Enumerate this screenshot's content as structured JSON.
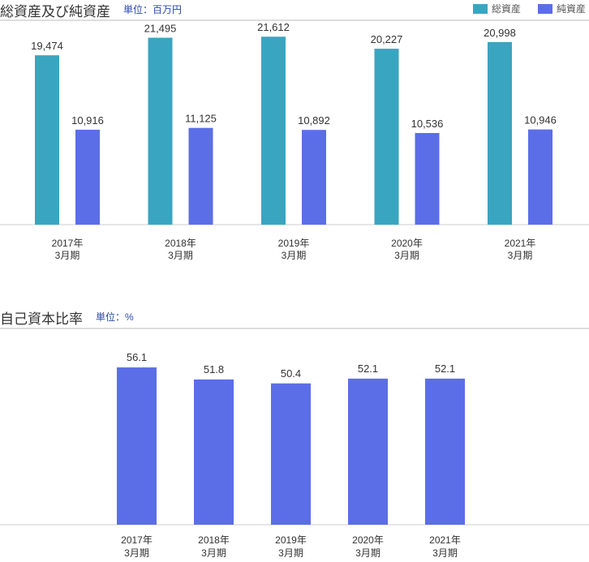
{
  "chart_data": [
    {
      "type": "bar",
      "title": "総資産及び純資産",
      "unit": "単位：百万円",
      "categories": [
        [
          "2017年",
          "3月期"
        ],
        [
          "2018年",
          "3月期"
        ],
        [
          "2019年",
          "3月期"
        ],
        [
          "2020年",
          "3月期"
        ],
        [
          "2021年",
          "3月期"
        ]
      ],
      "series": [
        {
          "name": "総資産",
          "color": "#3aa5c1",
          "values": [
            19474,
            21495,
            21612,
            20227,
            20998
          ],
          "labels": [
            "19,474",
            "21,495",
            "21,612",
            "20,227",
            "20,998"
          ]
        },
        {
          "name": "純資産",
          "color": "#5b6ee8",
          "values": [
            10916,
            11125,
            10892,
            10536,
            10946
          ],
          "labels": [
            "10,916",
            "11,125",
            "10,892",
            "10,536",
            "10,946"
          ]
        }
      ],
      "ylim": [
        0,
        23500
      ],
      "legend": "top-right",
      "grid": false
    },
    {
      "type": "bar",
      "title": "自己資本比率",
      "unit": "単位：%",
      "categories": [
        [
          "2017年",
          "3月期"
        ],
        [
          "2018年",
          "3月期"
        ],
        [
          "2019年",
          "3月期"
        ],
        [
          "2020年",
          "3月期"
        ],
        [
          "2021年",
          "3月期"
        ]
      ],
      "series": [
        {
          "name": "自己資本比率",
          "color": "#5b6ee8",
          "values": [
            56.1,
            51.8,
            50.4,
            52.1,
            52.1
          ],
          "labels": [
            "56.1",
            "51.8",
            "50.4",
            "52.1",
            "52.1"
          ]
        }
      ],
      "ylim": [
        0,
        70
      ],
      "grid": false
    }
  ]
}
